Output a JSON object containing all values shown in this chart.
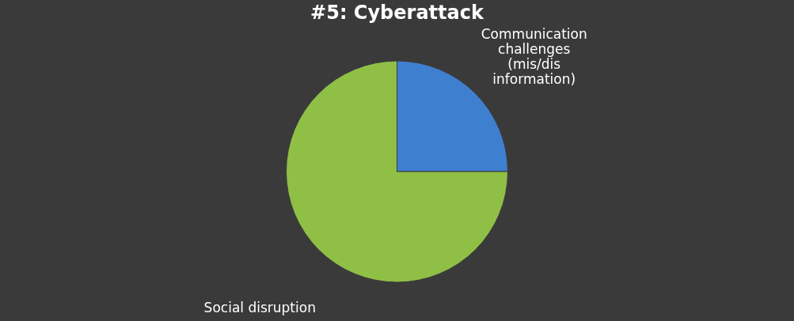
{
  "chart_data": {
    "type": "pie",
    "title": "#5: Cyberattack",
    "categories": [
      "Communication challenges (mis/dis information)",
      "Social disruption"
    ],
    "values": [
      25,
      75
    ],
    "colors": [
      "#3f7fd0",
      "#8fbf45"
    ],
    "legend": false
  }
}
